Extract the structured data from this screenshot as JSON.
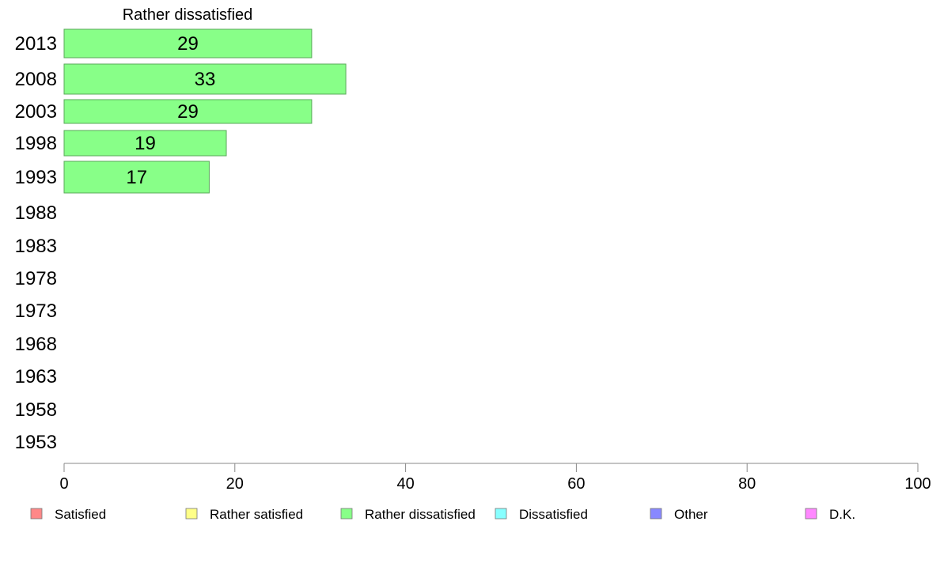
{
  "chart_data": {
    "type": "bar",
    "orientation": "horizontal",
    "title": "Rather dissatisfied",
    "categories": [
      "2013",
      "2008",
      "2003",
      "1998",
      "1993",
      "1988",
      "1983",
      "1978",
      "1973",
      "1968",
      "1963",
      "1958",
      "1953"
    ],
    "series": [
      {
        "name": "Rather dissatisfied",
        "color": "#88ff88",
        "values": [
          29,
          33,
          29,
          19,
          17,
          null,
          null,
          null,
          null,
          null,
          null,
          null,
          null
        ],
        "value_labels": [
          "29",
          "33",
          "29",
          "19",
          "17",
          "",
          "",
          "",
          "",
          "",
          "",
          "",
          ""
        ]
      }
    ],
    "xlim": [
      0,
      100
    ],
    "xticks": [
      "0",
      "20",
      "40",
      "60",
      "80",
      "100"
    ],
    "grid": false,
    "legend": {
      "placement": "bottom",
      "entries": [
        {
          "label": "Satisfied",
          "color": "#ff8888"
        },
        {
          "label": "Rather satisfied",
          "color": "#ffff88"
        },
        {
          "label": "Rather dissatisfied",
          "color": "#88ff88"
        },
        {
          "label": "Dissatisfied",
          "color": "#88ffff"
        },
        {
          "label": "Other",
          "color": "#8888ff"
        },
        {
          "label": "D.K.",
          "color": "#ff88ff"
        }
      ]
    }
  }
}
